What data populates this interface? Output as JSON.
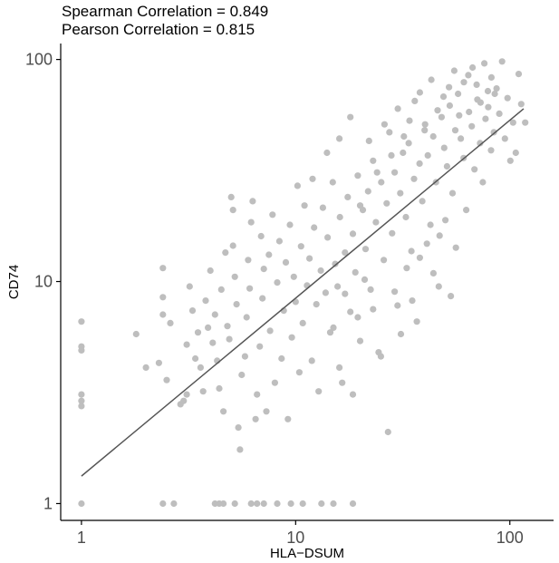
{
  "chart_data": {
    "type": "scatter",
    "title": [
      "Spearman Correlation = 0.849",
      "Pearson Correlation = 0.815"
    ],
    "xlabel": "HLA−DSUM",
    "ylabel": "CD74",
    "xscale": "log10",
    "yscale": "log10",
    "xlim": [
      0.8,
      160
    ],
    "ylim": [
      0.84,
      118
    ],
    "xticks": [
      1,
      10,
      100
    ],
    "xtick_labels": [
      "1",
      "10",
      "100"
    ],
    "yticks": [
      1,
      10,
      100
    ],
    "ytick_labels": [
      "1",
      "10",
      "100"
    ],
    "grid": false,
    "point_color": "#bebebe",
    "line_color": "#555555",
    "fit_line": {
      "x": [
        1,
        116
      ],
      "y": [
        1.33,
        60
      ]
    },
    "series": [
      {
        "points": [
          [
            1,
            1
          ],
          [
            2.4,
            1
          ],
          [
            2.7,
            1
          ],
          [
            4.2,
            1
          ],
          [
            4.4,
            1
          ],
          [
            4.6,
            1
          ],
          [
            5.2,
            1
          ],
          [
            6.2,
            1
          ],
          [
            6.6,
            1
          ],
          [
            7.1,
            1
          ],
          [
            8.2,
            1
          ],
          [
            9.5,
            1
          ],
          [
            10.8,
            1
          ],
          [
            13.2,
            1
          ],
          [
            15,
            1
          ],
          [
            18.5,
            1
          ],
          [
            1,
            6.6
          ],
          [
            1,
            5.1
          ],
          [
            1,
            4.9
          ],
          [
            1,
            3.1
          ],
          [
            1,
            2.9
          ],
          [
            1,
            2.75
          ],
          [
            1.8,
            5.8
          ],
          [
            2,
            4.1
          ],
          [
            2.3,
            4.3
          ],
          [
            2.4,
            11.5
          ],
          [
            2.4,
            8.5
          ],
          [
            2.4,
            7.1
          ],
          [
            2.5,
            3.6
          ],
          [
            2.6,
            6.5
          ],
          [
            2.9,
            2.8
          ],
          [
            3,
            2.9
          ],
          [
            3.1,
            5.2
          ],
          [
            3.1,
            3.1
          ],
          [
            3.2,
            9.5
          ],
          [
            3.3,
            7.4
          ],
          [
            3.4,
            4.5
          ],
          [
            3.5,
            5.9
          ],
          [
            3.6,
            4.1
          ],
          [
            3.7,
            3.2
          ],
          [
            3.8,
            8.2
          ],
          [
            3.9,
            6.2
          ],
          [
            4,
            11.2
          ],
          [
            4.1,
            5.3
          ],
          [
            4.2,
            7.1
          ],
          [
            4.3,
            4.4
          ],
          [
            4.4,
            3.3
          ],
          [
            4.6,
            2.6
          ],
          [
            4.5,
            9.2
          ],
          [
            4.7,
            13.5
          ],
          [
            4.8,
            6.3
          ],
          [
            4.9,
            5.5
          ],
          [
            5,
            24
          ],
          [
            5.1,
            21
          ],
          [
            5.1,
            14.5
          ],
          [
            5.2,
            10.5
          ],
          [
            5.3,
            7.9
          ],
          [
            5.4,
            2.2
          ],
          [
            5.5,
            1.75
          ],
          [
            5.6,
            3.8
          ],
          [
            5.8,
            4.6
          ],
          [
            5.9,
            6.9
          ],
          [
            6,
            12.5
          ],
          [
            6.1,
            9.3
          ],
          [
            6.2,
            18.5
          ],
          [
            6.3,
            23
          ],
          [
            6.5,
            2.4
          ],
          [
            6.6,
            3.1
          ],
          [
            6.8,
            5.1
          ],
          [
            6.9,
            16
          ],
          [
            7,
            8.4
          ],
          [
            7.1,
            11.4
          ],
          [
            7.3,
            2.6
          ],
          [
            7.5,
            13.2
          ],
          [
            7.6,
            6
          ],
          [
            7.8,
            20
          ],
          [
            8,
            3.5
          ],
          [
            8.2,
            9.9
          ],
          [
            8.4,
            15.2
          ],
          [
            8.6,
            4.5
          ],
          [
            8.8,
            7.4
          ],
          [
            9,
            12.2
          ],
          [
            9.2,
            2.4
          ],
          [
            9.4,
            18
          ],
          [
            9.6,
            5.6
          ],
          [
            9.8,
            10.5
          ],
          [
            10,
            8.1
          ],
          [
            10.2,
            27
          ],
          [
            10.4,
            3.9
          ],
          [
            10.6,
            14.4
          ],
          [
            10.8,
            6.5
          ],
          [
            11,
            22
          ],
          [
            11.3,
            9.6
          ],
          [
            11.6,
            12.7
          ],
          [
            11.9,
            4.4
          ],
          [
            12.2,
            17.5
          ],
          [
            12.5,
            7.9
          ],
          [
            12.8,
            3.2
          ],
          [
            13.1,
            11.2
          ],
          [
            13.4,
            21.5
          ],
          [
            13.8,
            8.9
          ],
          [
            14.1,
            15.8
          ],
          [
            14.5,
            5.9
          ],
          [
            14.9,
            28
          ],
          [
            15.3,
            12
          ],
          [
            15.7,
            9.5
          ],
          [
            16.1,
            19.5
          ],
          [
            16.5,
            3.5
          ],
          [
            17,
            13.5
          ],
          [
            17.5,
            24
          ],
          [
            18,
            7.3
          ],
          [
            18.5,
            16.4
          ],
          [
            19,
            11
          ],
          [
            19.5,
            30
          ],
          [
            20,
            5.4
          ],
          [
            20.6,
            21
          ],
          [
            21.2,
            14
          ],
          [
            21.8,
            25.5
          ],
          [
            22.4,
            9.2
          ],
          [
            23,
            35
          ],
          [
            23.7,
            18.5
          ],
          [
            24.4,
            4.8
          ],
          [
            25.1,
            28
          ],
          [
            25.8,
            12.5
          ],
          [
            26.6,
            22.5
          ],
          [
            27.4,
            47
          ],
          [
            28.2,
            16.5
          ],
          [
            29,
            31
          ],
          [
            29.9,
            7.8
          ],
          [
            30.8,
            25
          ],
          [
            31.7,
            38
          ],
          [
            32.7,
            19.5
          ],
          [
            33.7,
            42
          ],
          [
            34.7,
            13.7
          ],
          [
            35.7,
            29
          ],
          [
            36.8,
            6.6
          ],
          [
            37.9,
            34
          ],
          [
            39,
            23
          ],
          [
            40.2,
            51
          ],
          [
            41.4,
            37
          ],
          [
            42.6,
            18
          ],
          [
            43.9,
            45
          ],
          [
            45.2,
            28
          ],
          [
            46.6,
            9.5
          ],
          [
            48,
            55
          ],
          [
            49.4,
            40
          ],
          [
            50.9,
            33
          ],
          [
            52.4,
            62
          ],
          [
            54,
            25
          ],
          [
            55.6,
            48
          ],
          [
            57.3,
            70
          ],
          [
            59,
            44
          ],
          [
            60.8,
            36
          ],
          [
            62.6,
            21
          ],
          [
            64.5,
            58
          ],
          [
            66.4,
            50
          ],
          [
            68.4,
            32
          ],
          [
            70.5,
            66
          ],
          [
            72.6,
            42
          ],
          [
            74.8,
            28
          ],
          [
            77,
            54
          ],
          [
            79.3,
            61
          ],
          [
            81.7,
            39
          ],
          [
            84.2,
            47
          ],
          [
            86.7,
            74
          ],
          [
            89.3,
            57
          ],
          [
            92,
            98
          ],
          [
            94.8,
            44
          ],
          [
            97.6,
            67
          ],
          [
            100.5,
            35
          ],
          [
            103.5,
            52
          ],
          [
            106.6,
            38
          ],
          [
            110,
            86
          ],
          [
            113,
            63
          ],
          [
            118,
            52
          ],
          [
            12,
            29
          ],
          [
            14,
            38
          ],
          [
            16,
            44
          ],
          [
            18,
            55
          ],
          [
            20,
            22
          ],
          [
            22,
            43
          ],
          [
            24,
            31
          ],
          [
            26,
            51
          ],
          [
            28,
            37
          ],
          [
            30,
            60
          ],
          [
            32,
            45
          ],
          [
            34,
            53
          ],
          [
            36,
            65
          ],
          [
            38,
            71
          ],
          [
            40,
            48
          ],
          [
            43,
            81
          ],
          [
            46,
            59
          ],
          [
            49,
            68
          ],
          [
            52,
            75
          ],
          [
            55,
            89
          ],
          [
            58,
            56
          ],
          [
            61,
            79
          ],
          [
            64,
            85
          ],
          [
            67,
            92
          ],
          [
            70,
            77
          ],
          [
            73,
            64
          ],
          [
            76,
            96
          ],
          [
            79,
            72
          ],
          [
            82,
            83
          ],
          [
            85,
            70
          ],
          [
            15,
            6.2
          ],
          [
            16,
            4.1
          ],
          [
            17,
            8.8
          ],
          [
            18.5,
            3.1
          ],
          [
            19.5,
            6.9
          ],
          [
            21,
            10.2
          ],
          [
            23,
            7.5
          ],
          [
            25,
            4.6
          ],
          [
            27,
            2.1
          ],
          [
            29,
            9
          ],
          [
            31,
            5.8
          ],
          [
            33,
            11.5
          ],
          [
            35,
            8.2
          ],
          [
            38,
            12.8
          ],
          [
            41,
            14.8
          ],
          [
            44,
            10.9
          ],
          [
            47,
            16.1
          ],
          [
            50,
            18.9
          ],
          [
            53,
            8.6
          ],
          [
            56,
            14.2
          ]
        ]
      }
    ]
  }
}
